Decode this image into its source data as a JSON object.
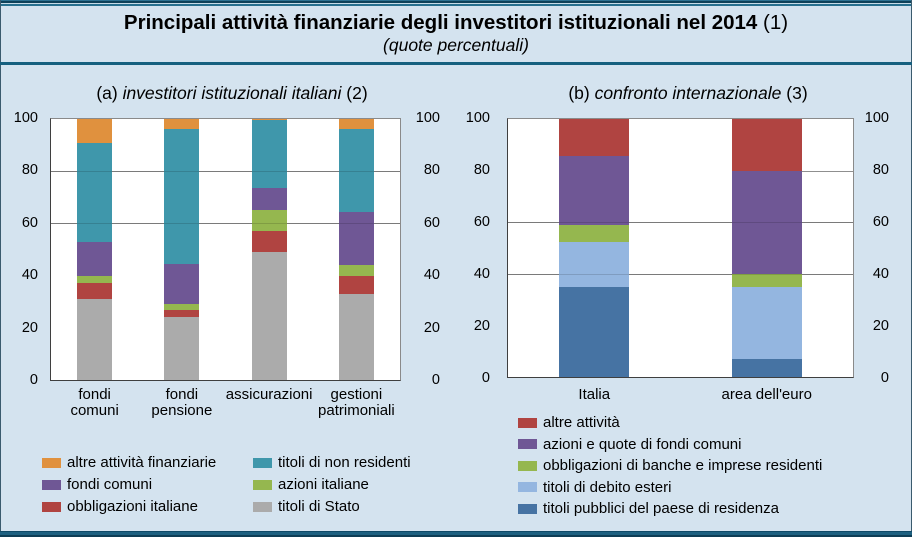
{
  "figure": {
    "title": "Principali attività finanziarie degli investitori istituzionali nel 2014",
    "title_note": " (1)",
    "subtitle": "(quote percentuali)"
  },
  "chart_data": [
    {
      "type": "stacked-bar",
      "title_prefix": "(a) ",
      "title_italic": "investitori istituzionali italiani",
      "title_suffix": " (2)",
      "categories": [
        [
          "fondi",
          "comuni"
        ],
        [
          "fondi",
          "pensione"
        ],
        [
          "assicurazioni"
        ],
        [
          "gestioni",
          "patrimoniali"
        ]
      ],
      "series": [
        {
          "name": "titoli di Stato",
          "color": "#ABABAB",
          "values": [
            31,
            24,
            49,
            33
          ]
        },
        {
          "name": "obbligazioni italiane",
          "color": "#B04441",
          "values": [
            6,
            3,
            8,
            7
          ]
        },
        {
          "name": "azioni italiane",
          "color": "#95B74F",
          "values": [
            3,
            2,
            8,
            4
          ]
        },
        {
          "name": "fondi comuni",
          "color": "#6F5795",
          "values": [
            13,
            15.5,
            8.5,
            20.5
          ]
        },
        {
          "name": "titoli di non residenti",
          "color": "#3F97AB",
          "values": [
            38,
            51.5,
            26,
            31.5
          ]
        },
        {
          "name": "altre attività finanziarie",
          "color": "#E0913E",
          "values": [
            9,
            4,
            0.5,
            4
          ]
        }
      ],
      "ylim": [
        0,
        100
      ],
      "yticks": [
        0,
        20,
        40,
        60,
        80,
        100
      ],
      "gridlines": [
        60,
        80
      ]
    },
    {
      "type": "stacked-bar",
      "title_prefix": "(b) ",
      "title_italic": "confronto internazionale",
      "title_suffix": " (3)",
      "categories": [
        [
          "Italia"
        ],
        [
          "area dell'euro"
        ]
      ],
      "series": [
        {
          "name": "titoli pubblici del paese di residenza",
          "color": "#4673A3",
          "values": [
            35,
            7
          ]
        },
        {
          "name": "titoli di debito esteri",
          "color": "#94B6E0",
          "values": [
            17.5,
            28
          ]
        },
        {
          "name": "obbligazioni di banche e imprese residenti",
          "color": "#95B74F",
          "values": [
            6.5,
            5
          ]
        },
        {
          "name": "azioni e quote di fondi comuni",
          "color": "#6F5795",
          "values": [
            26.5,
            40
          ]
        },
        {
          "name": "altre attività",
          "color": "#B04441",
          "values": [
            14.5,
            20
          ]
        }
      ],
      "ylim": [
        0,
        100
      ],
      "yticks": [
        0,
        20,
        40,
        60,
        80,
        100
      ],
      "gridlines": [
        40,
        60
      ],
      "extra_gridline_80_right": true
    }
  ],
  "legends": [
    {
      "columns": [
        [
          "altre attività finanziarie",
          "fondi comuni",
          "obbligazioni italiane"
        ],
        [
          "titoli di non residenti",
          "azioni italiane",
          "titoli di Stato"
        ]
      ]
    },
    {
      "columns": [
        [
          "altre attività",
          "azioni e quote di fondi comuni",
          "obbligazioni di banche e imprese residenti",
          "titoli di debito esteri",
          "titoli pubblici del paese di residenza"
        ]
      ]
    }
  ]
}
